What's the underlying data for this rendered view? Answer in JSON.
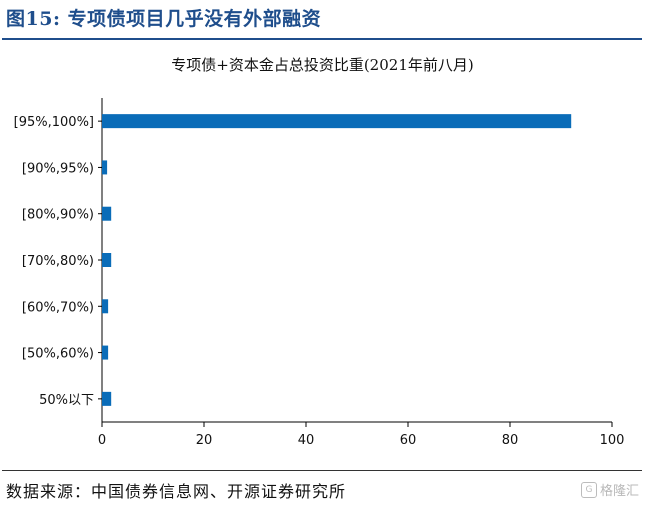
{
  "figure": {
    "title": "图15:  专项债项目几乎没有外部融资",
    "source": "数据来源：中国债券信息网、开源证券研究所",
    "watermark": "格隆汇",
    "accent_color": "#1f4e8c",
    "bar_color": "#0a6cb8"
  },
  "chart_data": {
    "type": "bar",
    "orientation": "horizontal",
    "title": "专项债+资本金占总投资比重(2021年前八月)",
    "xlabel": "",
    "ylabel": "",
    "categories": [
      "[95%,100%]",
      "[90%,95%)",
      "[80%,90%)",
      "[70%,80%)",
      "[60%,70%)",
      "[50%,60%)",
      "50%以下"
    ],
    "values": [
      92,
      1,
      1.8,
      1.8,
      1.2,
      1.2,
      1.8
    ],
    "xlim": [
      0,
      100
    ],
    "xticks": [
      0,
      20,
      40,
      60,
      80,
      100
    ],
    "grid": false,
    "legend": "none"
  }
}
